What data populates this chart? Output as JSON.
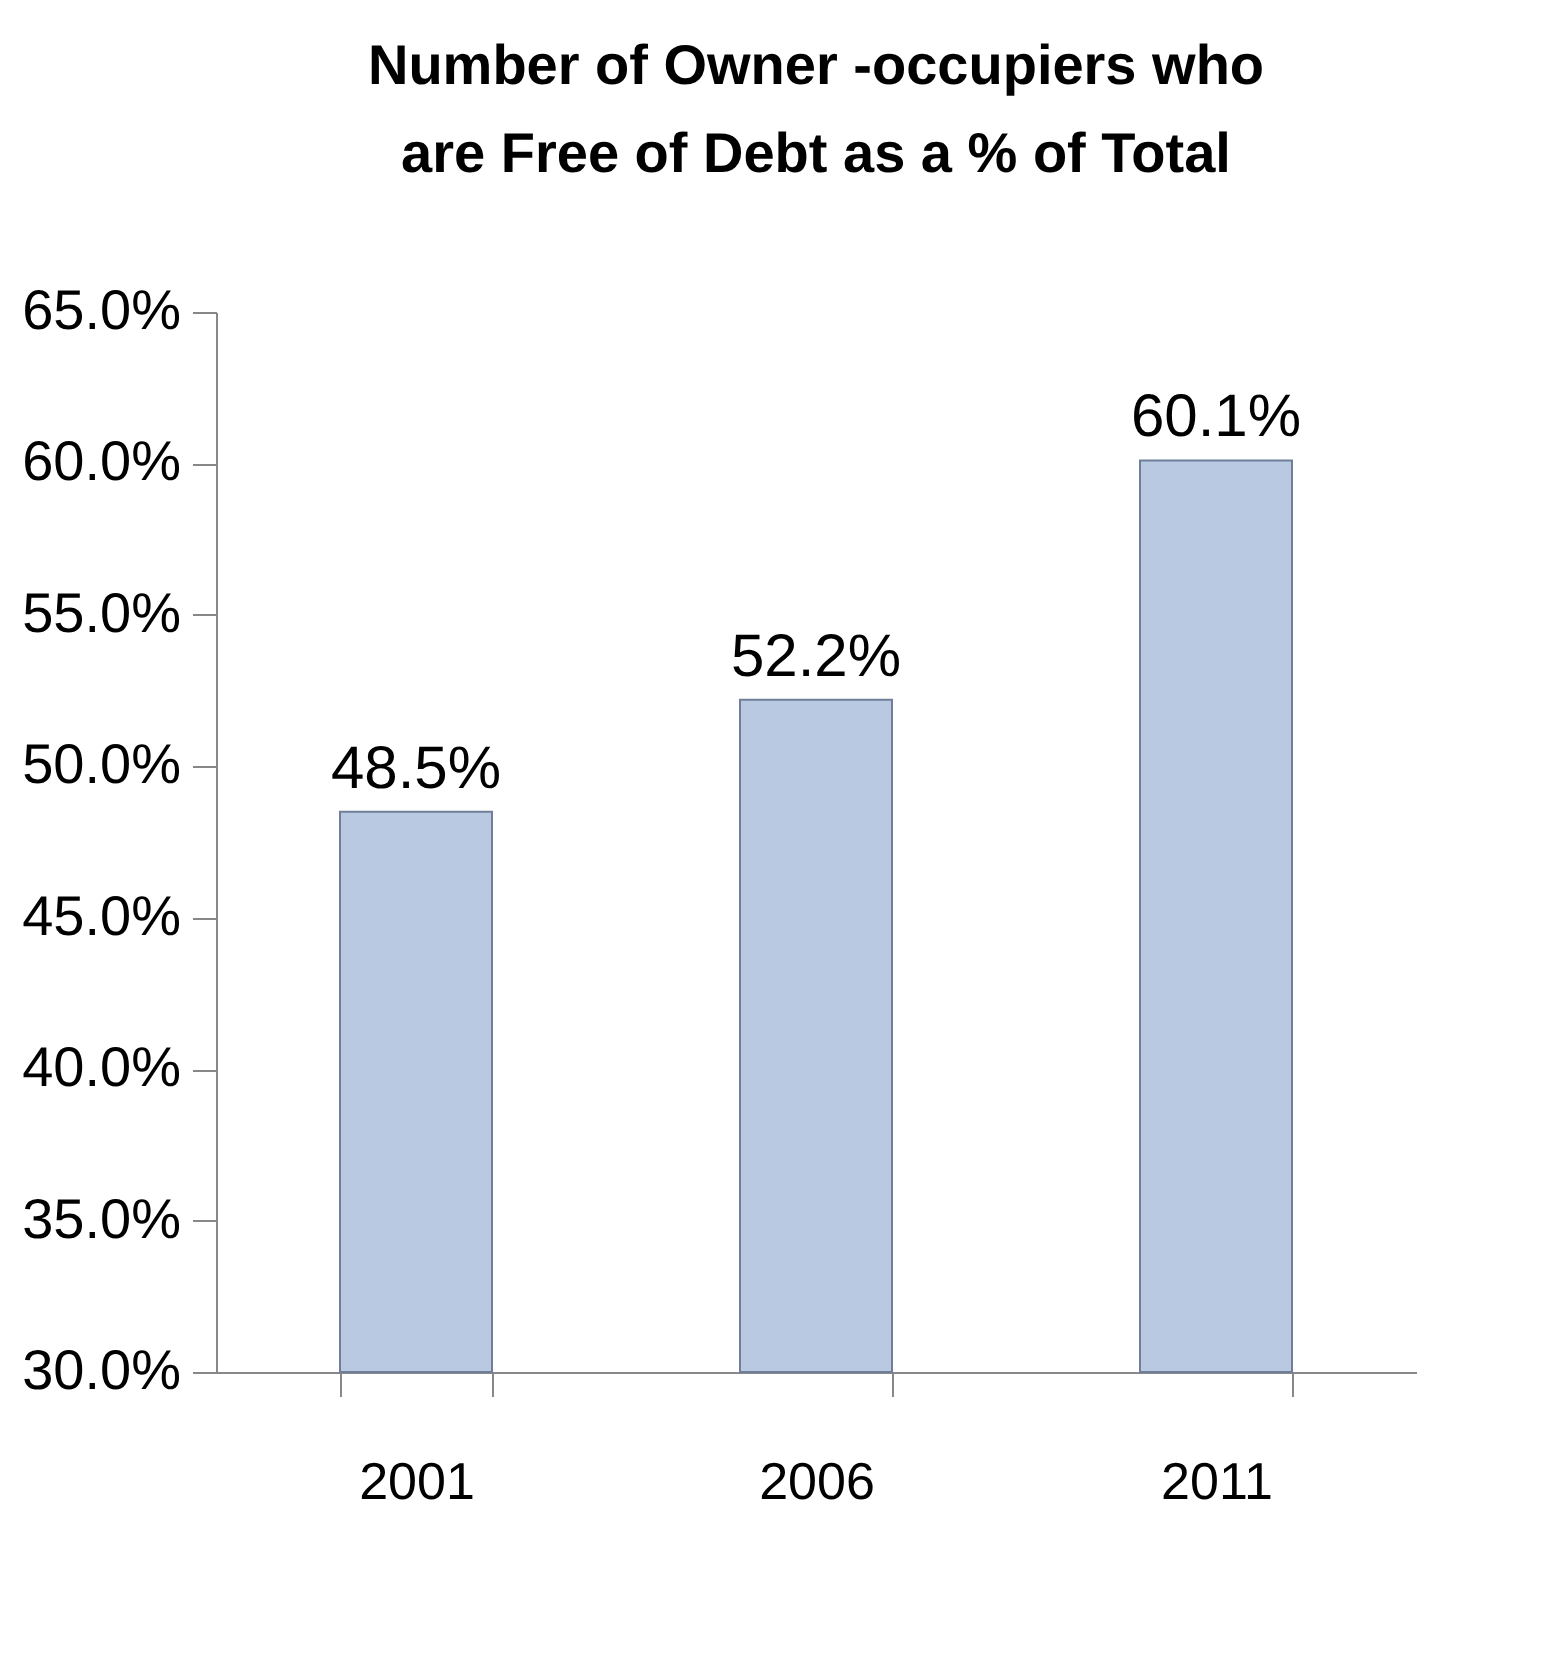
{
  "chart_data": {
    "type": "bar",
    "title": "Number of Owner -occupiers who\nare Free of Debt as a % of Total",
    "categories": [
      "2001",
      "2006",
      "2011"
    ],
    "values": [
      48.5,
      52.2,
      60.1
    ],
    "value_labels": [
      "48.5%",
      "52.2%",
      "60.1%"
    ],
    "color": "#b8c9e1",
    "ylim": [
      30,
      65
    ],
    "yticks": [
      {
        "value": 30,
        "label": "30.0%"
      },
      {
        "value": 35,
        "label": "35.0%"
      },
      {
        "value": 40,
        "label": "40.0%"
      },
      {
        "value": 45,
        "label": "45.0%"
      },
      {
        "value": 50,
        "label": "50.0%"
      },
      {
        "value": 55,
        "label": "55.0%"
      },
      {
        "value": 60,
        "label": "60.0%"
      },
      {
        "value": 65,
        "label": "65.0%"
      }
    ],
    "grid": false
  }
}
